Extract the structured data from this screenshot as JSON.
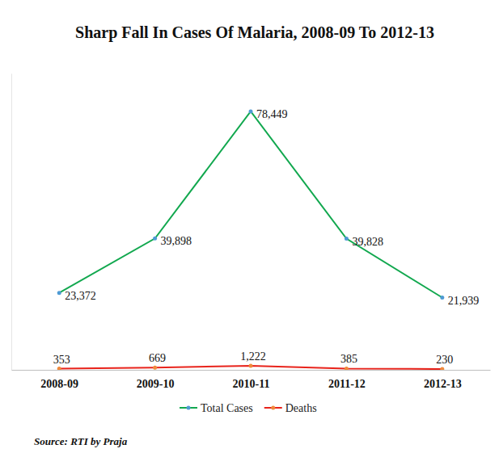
{
  "chart_data": {
    "type": "line",
    "title": "Sharp Fall In Cases Of Malaria, 2008-09 To 2012-13",
    "source": "Source: RTI by Praja",
    "categories": [
      "2008-09",
      "2009-10",
      "2010-11",
      "2011-12",
      "2012-13"
    ],
    "series": [
      {
        "name": "Total Cases",
        "color": "#12a84f",
        "marker": "circle",
        "values": [
          23372,
          39898,
          78449,
          39828,
          21939
        ],
        "value_labels": [
          "23,372",
          "39,898",
          "78,449",
          "39,828",
          "21,939"
        ]
      },
      {
        "name": "Deaths",
        "color": "#e8231b",
        "marker": "circle",
        "values": [
          353,
          669,
          1222,
          385,
          230
        ],
        "value_labels": [
          "353",
          "669",
          "1,222",
          "385",
          "230"
        ]
      }
    ],
    "ylim": [
      0,
      90000
    ],
    "grid": false,
    "legend": "bottom",
    "data_labels": true,
    "tick_labels": "x"
  }
}
